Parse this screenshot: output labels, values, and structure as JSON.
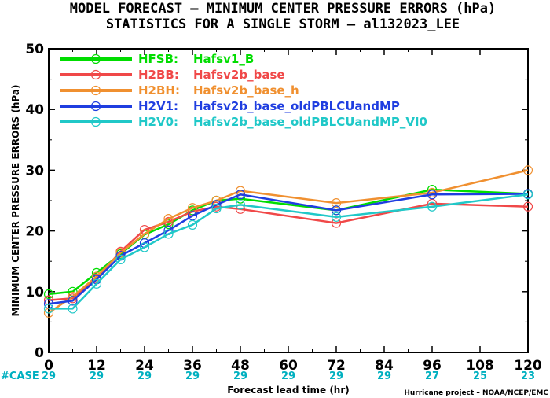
{
  "chart_data": {
    "type": "line",
    "title": "MODEL FORECAST – MINIMUM CENTER PRESSURE ERRORS (hPa)",
    "subtitle": "STATISTICS FOR A SINGLE STORM – al132023_LEE",
    "xlabel": "Forecast lead time (hr)",
    "ylabel": "MINIMUM CENTER PRESSURE ERRORS (hPa)",
    "credit": "Hurricane project – NOAA/NCEP/EMC",
    "xlim": [
      0,
      120
    ],
    "ylim": [
      0,
      50
    ],
    "xticks": [
      0,
      12,
      24,
      36,
      48,
      60,
      72,
      84,
      96,
      108,
      120
    ],
    "yticks": [
      0,
      10,
      20,
      30,
      40,
      50
    ],
    "case_label": "#CASE",
    "case_counts": [
      {
        "x": 0,
        "n": "29"
      },
      {
        "x": 12,
        "n": "29"
      },
      {
        "x": 24,
        "n": "29"
      },
      {
        "x": 36,
        "n": "29"
      },
      {
        "x": 48,
        "n": "29"
      },
      {
        "x": 60,
        "n": "29"
      },
      {
        "x": 72,
        "n": "29"
      },
      {
        "x": 84,
        "n": "29"
      },
      {
        "x": 96,
        "n": "27"
      },
      {
        "x": 108,
        "n": "25"
      },
      {
        "x": 120,
        "n": "23"
      }
    ],
    "case_color": "#00b0c0",
    "legend_position": "top-left",
    "grid": false,
    "x": [
      0,
      6,
      12,
      18,
      24,
      30,
      36,
      42,
      48,
      72,
      96,
      120
    ],
    "series": [
      {
        "name": "HFSB:",
        "desc": "Hafsv1_B",
        "color": "#00dd00",
        "values": [
          9.6,
          10.0,
          13.1,
          16.2,
          19.4,
          21.1,
          23.4,
          25.0,
          25.3,
          23.4,
          26.8,
          26.1
        ]
      },
      {
        "name": "H2BB:",
        "desc": "Hafsv2b_base",
        "color": "#f04848",
        "values": [
          8.6,
          8.9,
          12.2,
          16.6,
          20.2,
          21.5,
          23.2,
          24.0,
          23.6,
          21.3,
          24.5,
          24.0
        ]
      },
      {
        "name": "H2BH:",
        "desc": "Hafsv2b_base_h",
        "color": "#f09030",
        "values": [
          6.5,
          9.2,
          12.5,
          16.4,
          19.5,
          22.0,
          23.8,
          25.0,
          26.6,
          24.6,
          26.3,
          30.0
        ]
      },
      {
        "name": "H2V1:",
        "desc": "Hafsv2b_base_oldPBLCUandMP",
        "color": "#1f3ee0",
        "values": [
          8.0,
          8.5,
          12.0,
          15.9,
          18.0,
          20.1,
          22.5,
          24.3,
          26.0,
          23.4,
          26.0,
          26.1
        ]
      },
      {
        "name": "H2V0:",
        "desc": "Hafsv2b_base_oldPBLCUandMP_VI0",
        "color": "#20c8c8",
        "values": [
          7.2,
          7.2,
          11.3,
          15.3,
          17.3,
          19.5,
          21.0,
          23.7,
          24.3,
          22.3,
          24.0,
          26.0
        ]
      }
    ]
  }
}
